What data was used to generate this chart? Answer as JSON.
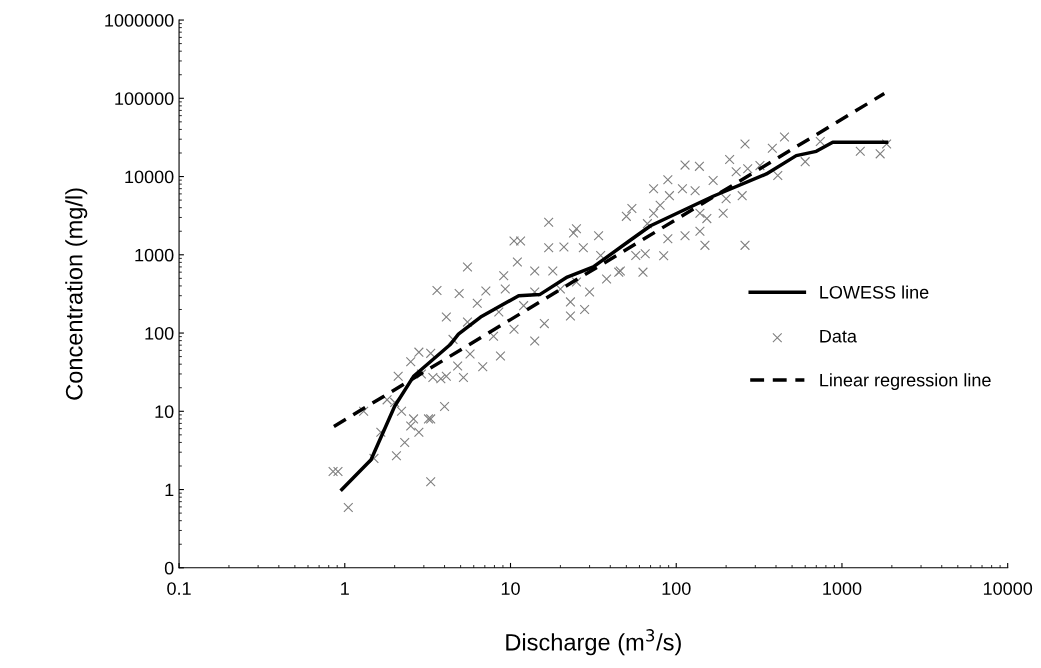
{
  "chart_data": {
    "type": "scatter",
    "xlabel": "Discharge (m$^{3}$/s)",
    "ylabel": "Concentration (mg/l)",
    "log": "xy",
    "grid": false,
    "legend": "right",
    "xlim": [
      0.1,
      10000
    ],
    "xticks": [
      0.1,
      1,
      10,
      100,
      1000,
      10000
    ],
    "ylim": [
      0.1,
      1000000
    ],
    "yticks": [
      {
        "value": 0.1,
        "label": "0"
      },
      1,
      10,
      100,
      1000,
      10000,
      100000,
      1000000
    ],
    "series": [
      {
        "name": "LOWESS line",
        "type": "line",
        "color": "#000000",
        "line_style": "solid",
        "marker": "none",
        "x": [
          0.96,
          1.44,
          2.0,
          2.6,
          4.35,
          4.85,
          6.6,
          11.2,
          15,
          22,
          31.6,
          52,
          70,
          167,
          350,
          530,
          700,
          880,
          1860
        ],
        "values": [
          1.0,
          2.4,
          11.6,
          28,
          72,
          97,
          160,
          300,
          310,
          520,
          700,
          1500,
          2350,
          5600,
          10800,
          18500,
          21000,
          27500,
          27500
        ]
      },
      {
        "name": "Data",
        "color": "#808080",
        "marker": "cross",
        "x": [
          3.6,
          4.1,
          0.85,
          0.91,
          1.05,
          1.3,
          1.65,
          1.5,
          2.05,
          2.3,
          3.3,
          4.0,
          2.5,
          2.8,
          3.3,
          1.8,
          2.1,
          2.2,
          2.5,
          2.8,
          3.3,
          3.4,
          4.1,
          2.9,
          2.0,
          17,
          5.5,
          4.9,
          10.5,
          11.5,
          25,
          24,
          17,
          34,
          21,
          27.5,
          11,
          9.1,
          14,
          18,
          35,
          45,
          38,
          28,
          23,
          14,
          7.1,
          6.3,
          5.5,
          4.5,
          5.7,
          6.8,
          8.7,
          5.2,
          2.6,
          3.2,
          8.5,
          12,
          16,
          10.5,
          7.9,
          4.8,
          3.8,
          20,
          25,
          23,
          30,
          50,
          14,
          9.3,
          260,
          450,
          740,
          1290,
          1700,
          1860,
          600,
          380,
          210,
          113,
          138,
          89,
          73,
          54,
          80,
          109,
          130,
          167,
          230,
          270,
          320,
          410,
          250,
          192,
          153,
          139,
          113,
          89,
          84,
          65,
          57,
          63,
          149,
          260,
          46,
          67,
          73,
          91,
          139,
          200
        ],
        "values": [
          350,
          160,
          1.7,
          1.7,
          0.59,
          10,
          5.4,
          2.5,
          2.7,
          4.0,
          1.26,
          11.5,
          6.5,
          5.4,
          8,
          14,
          28,
          10,
          43,
          57,
          55,
          27,
          28,
          30,
          13,
          2600,
          700,
          320,
          1500,
          1500,
          2150,
          1900,
          1230,
          1750,
          1260,
          1230,
          810,
          540,
          620,
          620,
          980,
          600,
          490,
          200,
          165,
          79,
          345,
          240,
          138,
          83,
          54,
          37,
          51,
          27,
          8,
          8,
          186,
          224,
          132,
          112,
          91,
          38,
          26,
          365,
          450,
          250,
          335,
          3100,
          335,
          365,
          26000,
          32000,
          28000,
          21000,
          19500,
          26000,
          15500,
          23000,
          16500,
          14000,
          13500,
          9100,
          7000,
          3900,
          4300,
          7000,
          6600,
          8900,
          11500,
          12600,
          13800,
          10300,
          5700,
          3400,
          2900,
          2000,
          1750,
          1600,
          970,
          1030,
          980,
          600,
          1320,
          1320,
          620,
          2500,
          3400,
          5700,
          3400,
          5200
        ]
      },
      {
        "name": "Linear regression line",
        "type": "line",
        "color": "#000000",
        "line_style": "dashed",
        "marker": "none",
        "x": [
          0.86,
          1800
        ],
        "values": [
          6.4,
          115000
        ]
      }
    ]
  }
}
